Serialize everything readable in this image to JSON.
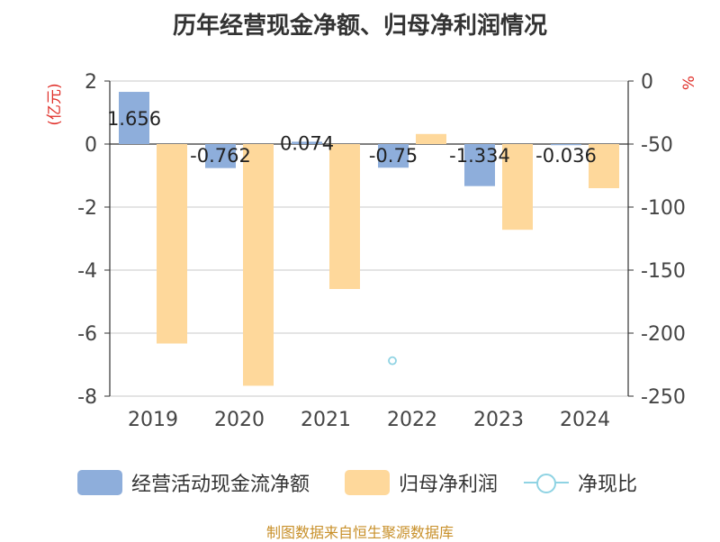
{
  "chart_data": {
    "type": "bar",
    "title": "历年经营现金净额、归母净利润情况",
    "categories": [
      "2019",
      "2020",
      "2021",
      "2022",
      "2023",
      "2024"
    ],
    "left_axis": {
      "label": "(亿元)",
      "ylim": [
        -8,
        2
      ],
      "ticks": [
        "2",
        "0",
        "-2",
        "-4",
        "-6",
        "-8"
      ]
    },
    "right_axis": {
      "label": "%",
      "ylim": [
        -250,
        0
      ],
      "ticks": [
        "0",
        "-50",
        "-100",
        "-150",
        "-200",
        "-250"
      ]
    },
    "series": [
      {
        "name": "经营活动现金流净额",
        "type": "bar",
        "axis": "left",
        "color": "#8eaedb",
        "values": [
          1.656,
          -0.762,
          0.074,
          -0.75,
          -1.334,
          -0.036
        ],
        "labels": [
          "1.656",
          "-0.762",
          "0.074",
          "-0.75",
          "-1.334",
          "-0.036"
        ]
      },
      {
        "name": "归母净利润",
        "type": "bar",
        "axis": "left",
        "color": "#fed89b",
        "values": [
          -6.33,
          -7.67,
          -4.6,
          0.32,
          -2.72,
          -1.4
        ]
      },
      {
        "name": "净现比",
        "type": "line",
        "axis": "right",
        "color": "#8fd3e3",
        "values": [
          null,
          null,
          null,
          -221.9,
          null,
          null
        ]
      }
    ],
    "grid": true,
    "legend": "bottom"
  },
  "legend_items": [
    {
      "label": "经营活动现金流净额",
      "color": "#8eaedb"
    },
    {
      "label": "归母净利润",
      "color": "#fed89b"
    },
    {
      "label": "净现比",
      "color": "#8fd3e3"
    }
  ],
  "source": "制图数据来自恒生聚源数据库"
}
